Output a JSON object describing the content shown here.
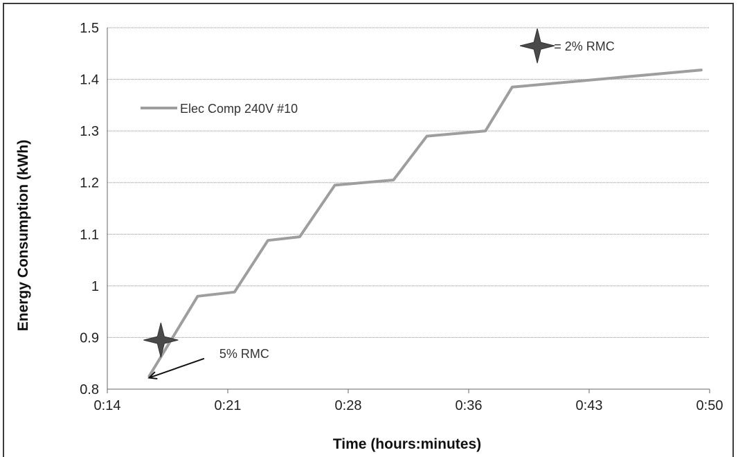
{
  "chart_data": {
    "type": "line",
    "title": "",
    "xlabel": "Time (hours:minutes)",
    "ylabel": "Energy Consumption  (kWh)",
    "x_tick_labels": [
      "0:14",
      "0:21",
      "0:28",
      "0:36",
      "0:43",
      "0:50"
    ],
    "x_range_minutes": [
      14.4,
      50.4
    ],
    "ylim": [
      0.8,
      1.5
    ],
    "y_ticks": [
      0.8,
      0.9,
      1,
      1.1,
      1.2,
      1.3,
      1.4,
      1.5
    ],
    "grid": "horizontal",
    "legend_position": "upper-left inside plot",
    "series": [
      {
        "name": "Elec Comp 240V #10",
        "color": "#9e9e9e",
        "x_minutes": [
          16.9,
          19.8,
          22.0,
          24.0,
          25.9,
          28.0,
          31.5,
          33.5,
          37.0,
          38.6,
          49.9
        ],
        "values": [
          0.825,
          0.98,
          0.988,
          1.088,
          1.095,
          1.195,
          1.205,
          1.29,
          1.3,
          1.385,
          1.418
        ]
      }
    ],
    "markers": [
      {
        "icon": "four-point-star-icon",
        "x_minutes": 17.6,
        "y": 0.895
      },
      {
        "icon": "four-point-star-icon",
        "x_minutes": 40.1,
        "y": 1.465
      }
    ],
    "annotations": [
      {
        "text": "5% RMC",
        "x_minutes": 21.1,
        "y": 0.87,
        "arrow_to_x_minutes": 16.9,
        "arrow_to_y": 0.822
      },
      {
        "text": "= 2% RMC",
        "x_minutes": 41.1,
        "y": 1.465
      }
    ]
  }
}
